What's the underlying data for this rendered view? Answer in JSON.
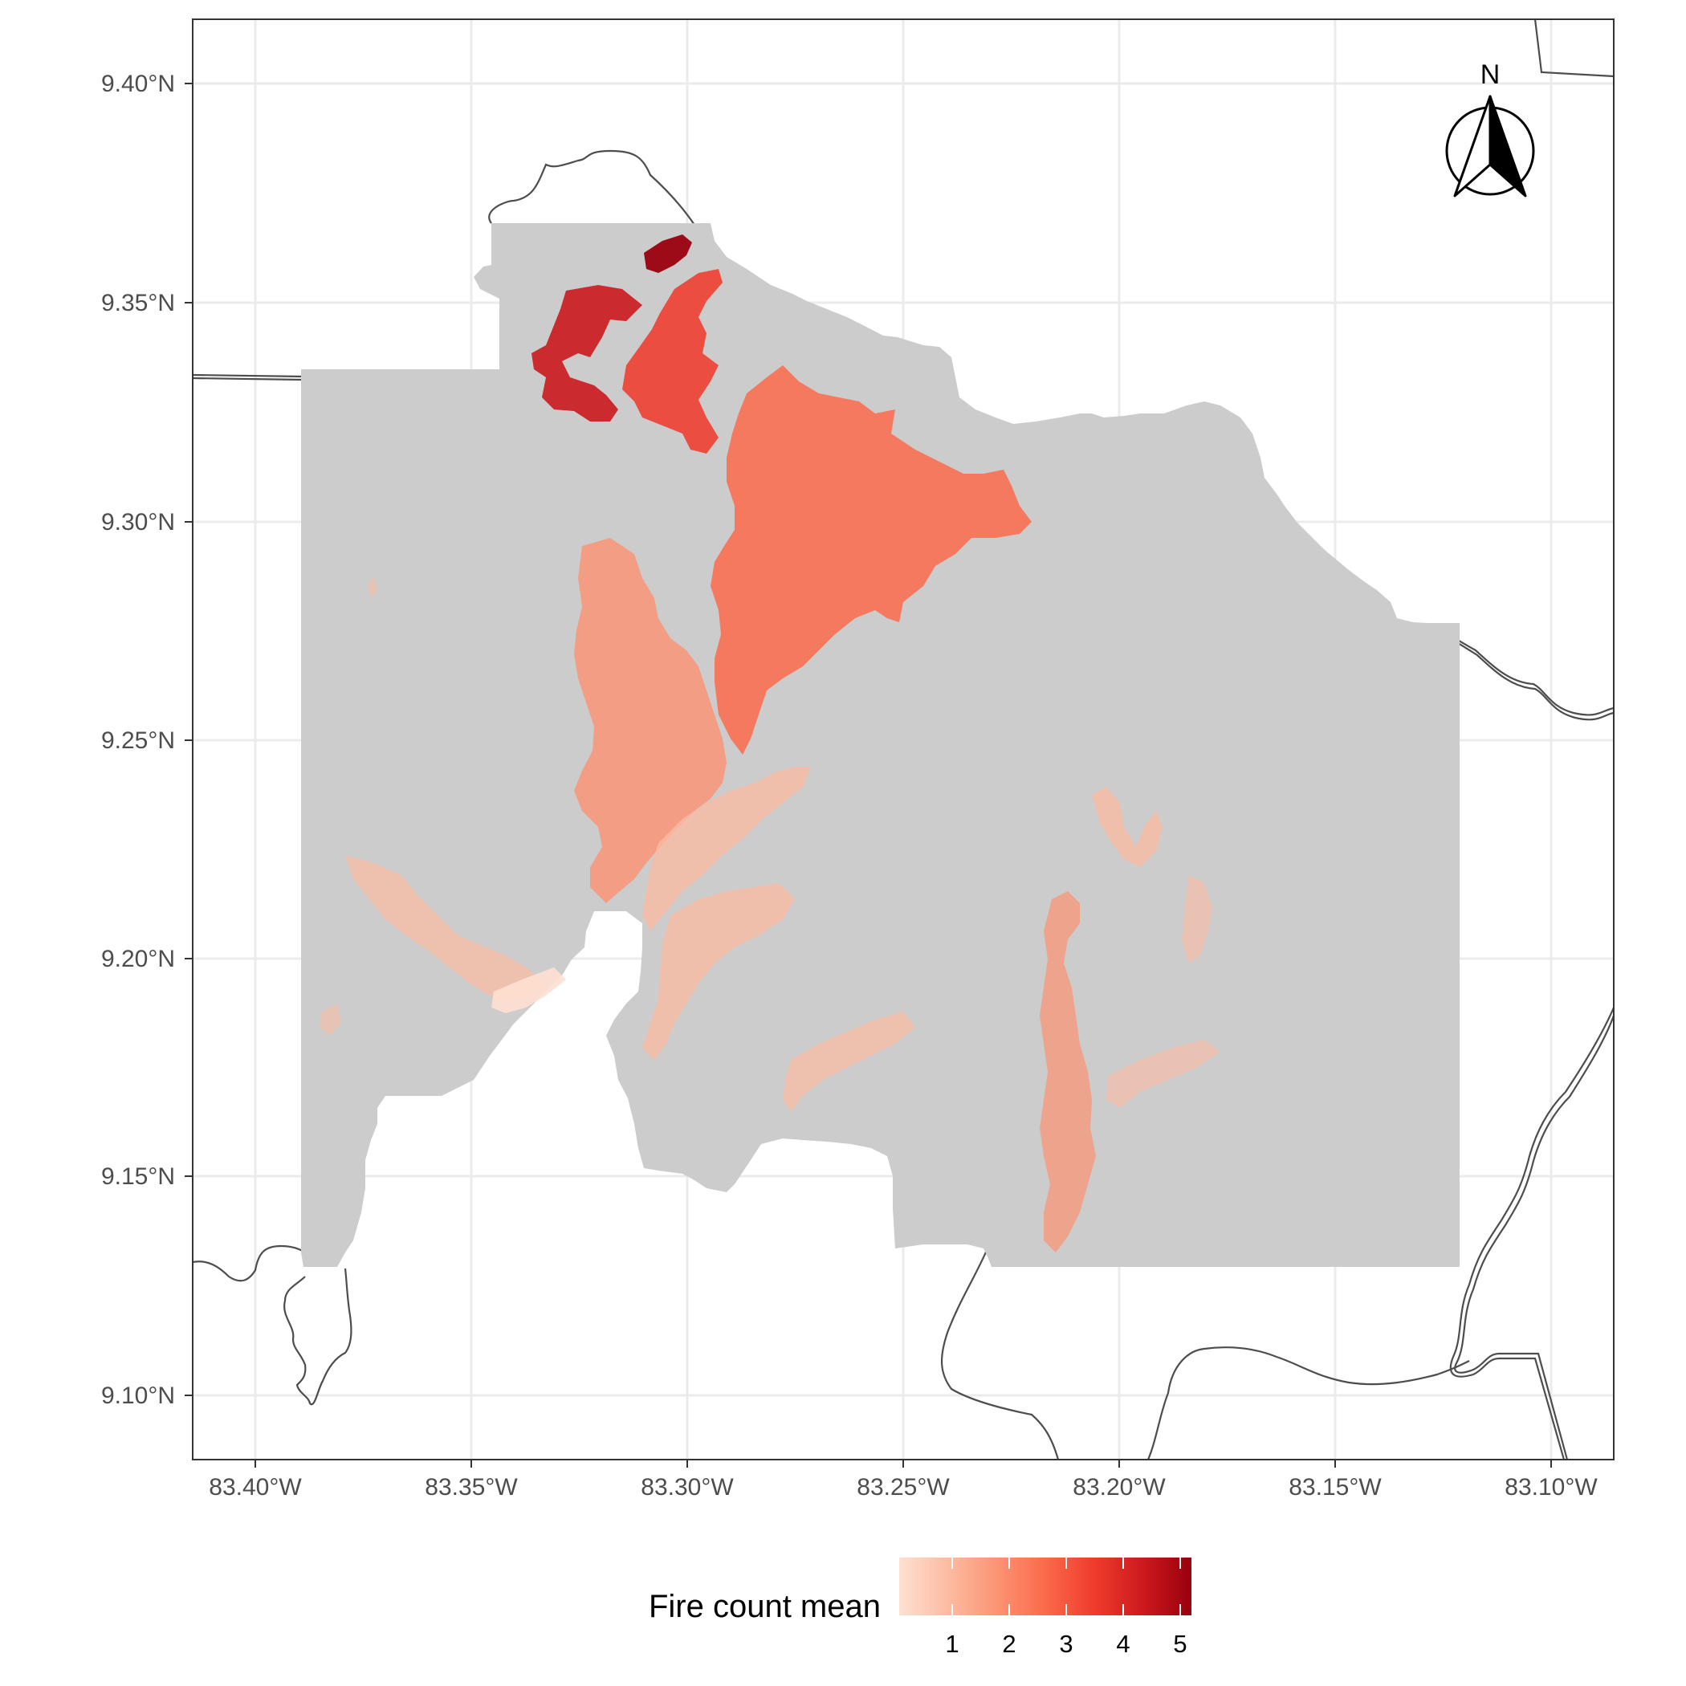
{
  "map": {
    "y_axis_labels": [
      "9.40°N",
      "9.35°N",
      "9.30°N",
      "9.25°N",
      "9.20°N",
      "9.15°N",
      "9.10°N"
    ],
    "x_axis_labels": [
      "83.40°W",
      "83.35°W",
      "83.30°W",
      "83.25°W",
      "83.20°W",
      "83.15°W",
      "83.10°W"
    ],
    "lat_range": [
      9.085,
      9.415
    ],
    "lon_range": [
      -83.415,
      -83.085
    ],
    "background_color": "#ffffff",
    "grid_color": "#ebebeb",
    "study_area_fill": "#cccccc",
    "boundary_color": "#4d4d4d",
    "north_arrow": {
      "letter": "N",
      "icon": "north-arrow-icon"
    }
  },
  "legend": {
    "title": "Fire count mean",
    "ticks": [
      "1",
      "2",
      "3",
      "4",
      "5"
    ],
    "range": [
      0.2,
      5.2
    ],
    "colors": [
      "#fee0d2",
      "#fcbba1",
      "#fc9272",
      "#fb6a4a",
      "#ef3b2c",
      "#cb181d",
      "#99000d"
    ]
  }
}
